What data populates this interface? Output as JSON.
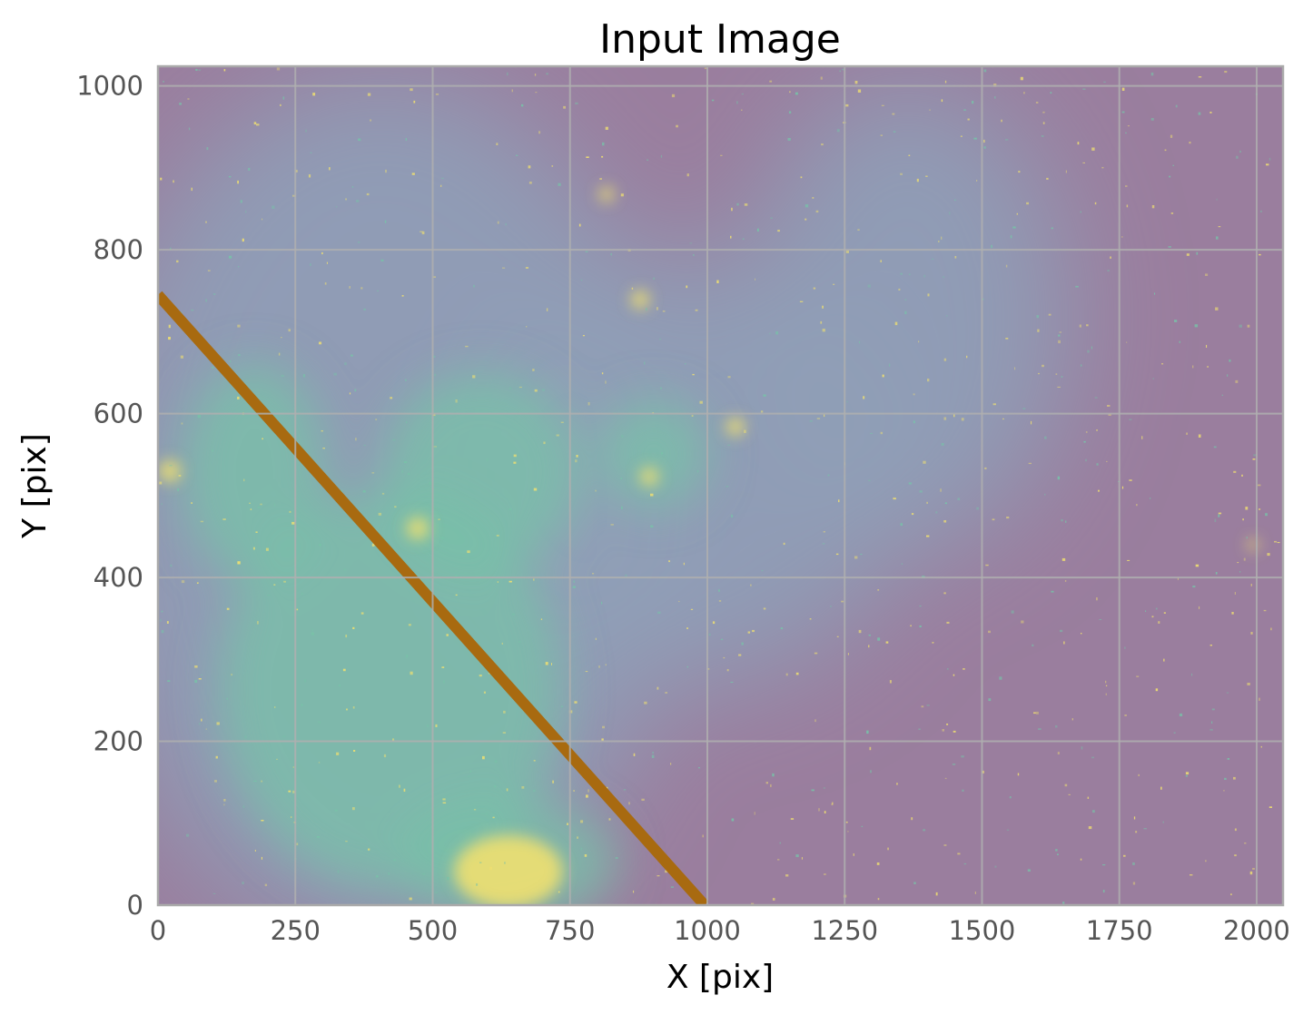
{
  "chart_data": {
    "type": "heatmap",
    "title": "Input Image",
    "xlabel": "X [pix]",
    "ylabel": "Y [pix]",
    "xlim": [
      0,
      2048
    ],
    "ylim": [
      0,
      1024
    ],
    "xticks": [
      0,
      250,
      500,
      750,
      1000,
      1250,
      1500,
      1750,
      2000
    ],
    "yticks": [
      0,
      200,
      400,
      600,
      800,
      1000
    ],
    "grid": true,
    "colormap": "viridis (semi-transparent)",
    "streak": {
      "start": [
        0,
        745
      ],
      "end": [
        995,
        0
      ],
      "color": "#a86a10"
    },
    "colors": {
      "background": "#9a7e9e",
      "mid": "#8fa0b8",
      "high": "#78c2a8",
      "peak": "#f0e070",
      "grid": "#b0b0b0",
      "frame": "#aaaaaa"
    }
  }
}
